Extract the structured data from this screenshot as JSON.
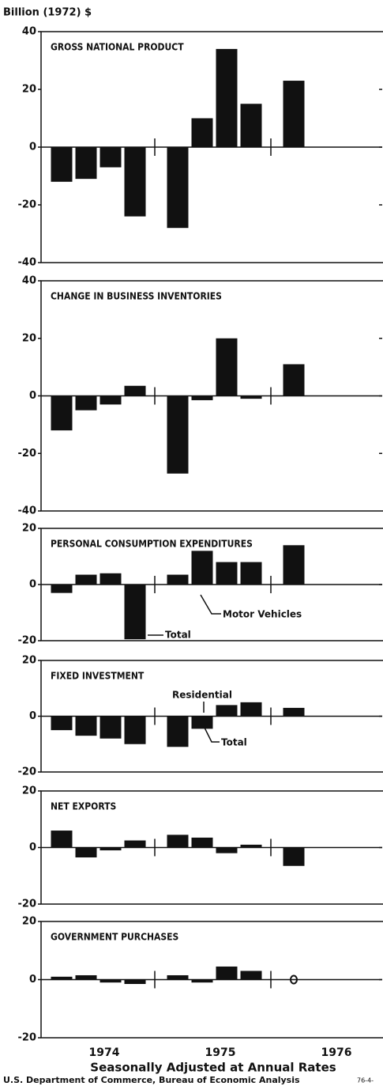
{
  "common": {
    "y_label": "Billion (1972) $",
    "x_labels": [
      "1974",
      "1975",
      "1976"
    ],
    "xlabel": "Seasonally Adjusted at Annual Rates",
    "source": "U.S. Department of Commerce, Bureau of Economic Analysis",
    "code": "76-4-"
  },
  "chart_data": [
    {
      "type": "bar",
      "title": "GROSS NATIONAL PRODUCT",
      "categories": [
        null,
        null,
        null,
        null,
        null,
        null,
        null,
        null,
        null
      ],
      "values": [
        -12,
        -11,
        -7,
        -24,
        -28,
        10,
        34,
        15,
        23
      ],
      "color": "#111111",
      "ylim": [
        -40,
        40
      ],
      "yticks": [
        -40,
        -20,
        0,
        20,
        40
      ]
    },
    {
      "type": "bar",
      "title": "CHANGE IN BUSINESS INVENTORIES",
      "categories": [
        null,
        null,
        null,
        null,
        null,
        null,
        null,
        null,
        null
      ],
      "values": [
        -12,
        -5,
        -3,
        3.5,
        -27,
        -1.5,
        20,
        -1,
        11
      ],
      "color": "#111111",
      "ylim": [
        -40,
        40
      ],
      "yticks": [
        -40,
        -20,
        0,
        20,
        40
      ]
    },
    {
      "type": "bar",
      "title": "PERSONAL CONSUMPTION EXPENDITURES",
      "categories": [
        null,
        null,
        null,
        null,
        null,
        null,
        null,
        null,
        null
      ],
      "values": [
        -3,
        3.5,
        4,
        -19.5,
        3.5,
        12,
        8,
        8,
        14
      ],
      "color": "#111111",
      "ylim": [
        -20,
        20
      ],
      "yticks": [
        -20,
        0,
        20
      ],
      "annotations": [
        "Total",
        "Motor Vehicles"
      ]
    },
    {
      "type": "bar",
      "title": "FIXED INVESTMENT",
      "categories": [
        null,
        null,
        null,
        null,
        null,
        null,
        null,
        null,
        null
      ],
      "values": [
        -5,
        -7,
        -8,
        -10,
        -11,
        -4.5,
        4,
        5,
        3
      ],
      "color": "#111111",
      "ylim": [
        -20,
        20
      ],
      "yticks": [
        -20,
        0,
        20
      ],
      "annotations": [
        "Residential",
        "Total"
      ]
    },
    {
      "type": "bar",
      "title": "NET EXPORTS",
      "categories": [
        null,
        null,
        null,
        null,
        null,
        null,
        null,
        null,
        null
      ],
      "values": [
        6,
        -3.5,
        -1,
        2.5,
        4.5,
        3.5,
        -2,
        1,
        -6.5
      ],
      "color": "#111111",
      "ylim": [
        -20,
        20
      ],
      "yticks": [
        -20,
        0,
        20
      ]
    },
    {
      "type": "bar",
      "title": "GOVERNMENT PURCHASES",
      "categories": [
        null,
        null,
        null,
        null,
        null,
        null,
        null,
        null,
        null
      ],
      "values": [
        1,
        1.5,
        -1,
        -1.5,
        1.5,
        -1,
        4.5,
        3,
        0
      ],
      "color": "#111111",
      "ylim": [
        -20,
        20
      ],
      "yticks": [
        -20,
        0,
        20
      ]
    }
  ]
}
